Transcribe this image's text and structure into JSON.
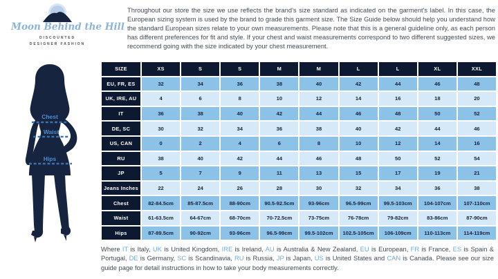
{
  "logo": {
    "brand_name": "Moon Behind the Hill",
    "tagline_line1": "DISCOUNTED",
    "tagline_line2": "DESIGNER FASHION"
  },
  "intro": {
    "text": "Throughout our store the size we use reflects the brand's size standard as indicated on the garment's label. In this case, the European sizing system is used by the brand to grade this garment size. The Size Guide below should help you understand how the standard European sizes relate to your own measurements. Please note that this is a general guideline only, as each person has different preferences for fit and style. If your chest and waist measurements correspond to two different suggested sizes, we recommend going with the size indicated by your chest measurement."
  },
  "figure": {
    "labels": [
      "Chest",
      "Waist",
      "Hips"
    ]
  },
  "size_table": {
    "header": [
      "SIZE",
      "XS",
      "S",
      "S",
      "M",
      "M",
      "L",
      "L",
      "XL",
      "XXL"
    ],
    "rows": [
      {
        "label": "EU, FR, ES",
        "shade": "medium",
        "values": [
          "32",
          "34",
          "36",
          "38",
          "40",
          "42",
          "44",
          "46",
          "48"
        ]
      },
      {
        "label": "UK, IRE, AU",
        "shade": "light",
        "values": [
          "4",
          "6",
          "8",
          "10",
          "12",
          "14",
          "16",
          "18",
          "20"
        ]
      },
      {
        "label": "IT",
        "shade": "medium",
        "values": [
          "36",
          "38",
          "40",
          "42",
          "44",
          "46",
          "48",
          "50",
          "52"
        ]
      },
      {
        "label": "DE, SC",
        "shade": "light",
        "values": [
          "30",
          "32",
          "34",
          "36",
          "38",
          "40",
          "42",
          "44",
          "46"
        ]
      },
      {
        "label": "US, CAN",
        "shade": "medium",
        "values": [
          "0",
          "2",
          "4",
          "6",
          "8",
          "10",
          "12",
          "14",
          "16"
        ]
      },
      {
        "label": "RU",
        "shade": "light",
        "values": [
          "38",
          "40",
          "42",
          "44",
          "46",
          "48",
          "50",
          "52",
          "54"
        ]
      },
      {
        "label": "JP",
        "shade": "medium",
        "values": [
          "5",
          "7",
          "9",
          "11",
          "13",
          "15",
          "17",
          "19",
          "21"
        ]
      },
      {
        "label": "Jeans Inches",
        "shade": "light",
        "values": [
          "22",
          "24",
          "26",
          "28",
          "30",
          "32",
          "34",
          "36",
          "38"
        ]
      },
      {
        "label": "Chest",
        "shade": "medium",
        "values": [
          "82-84.5cm",
          "85-87.5cm",
          "88-90cm",
          "90.5-92.5cm",
          "93-96cm",
          "96.5-99cm",
          "99.5-103cm",
          "104-107cm",
          "107-110cm"
        ]
      },
      {
        "label": "Waist",
        "shade": "light",
        "values": [
          "61-63.5cm",
          "64-67cm",
          "68-70cm",
          "70-72.5cm",
          "73-75cm",
          "76-78cm",
          "79-82cm",
          "83-86cm",
          "87-90cm"
        ]
      },
      {
        "label": "Hips",
        "shade": "medium",
        "values": [
          "87-89.5cm",
          "90-92cm",
          "93-96cm",
          "96.5-99cm",
          "99.5-102cm",
          "102.5-105cm",
          "106-109cm",
          "110-113cm",
          "114-119cm"
        ]
      }
    ]
  },
  "legend": {
    "segments": [
      {
        "text": "Where "
      },
      {
        "text": "IT",
        "hl": true
      },
      {
        "text": " is Italy, "
      },
      {
        "text": "UK",
        "hl": true
      },
      {
        "text": " is United Kingdom, "
      },
      {
        "text": "IRE",
        "hl": true
      },
      {
        "text": " is Ireland, "
      },
      {
        "text": "AU",
        "hl": true
      },
      {
        "text": " is Australia & New Zealand, "
      },
      {
        "text": "EU",
        "hl": true
      },
      {
        "text": " is European, "
      },
      {
        "text": "FR",
        "hl": true
      },
      {
        "text": " is France, "
      },
      {
        "text": "ES",
        "hl": true
      },
      {
        "text": " is Spain & Portugal, "
      },
      {
        "text": "DE",
        "hl": true
      },
      {
        "text": " is Germany, "
      },
      {
        "text": "SC",
        "hl": true
      },
      {
        "text": " is Scandinavia, "
      },
      {
        "text": "RU",
        "hl": true
      },
      {
        "text": " is Russia, "
      },
      {
        "text": "JP",
        "hl": true
      },
      {
        "text": " is Japan, "
      },
      {
        "text": "US",
        "hl": true
      },
      {
        "text": " is United States and "
      },
      {
        "text": "CAN",
        "hl": true
      },
      {
        "text": " is Canada. Please see our size guide page for detail instructions in how to take your body measurements correctly."
      }
    ]
  },
  "colors": {
    "dark_navy": "#0d1930",
    "cell_medium": "#8cc1e8",
    "cell_light": "#d6e9f8",
    "accent_blue": "#6fabd4",
    "label_blue": "#4d8fd0",
    "body_text": "#414b55",
    "moon_blue": "#b9cfe9",
    "silhouette": "#162440"
  }
}
